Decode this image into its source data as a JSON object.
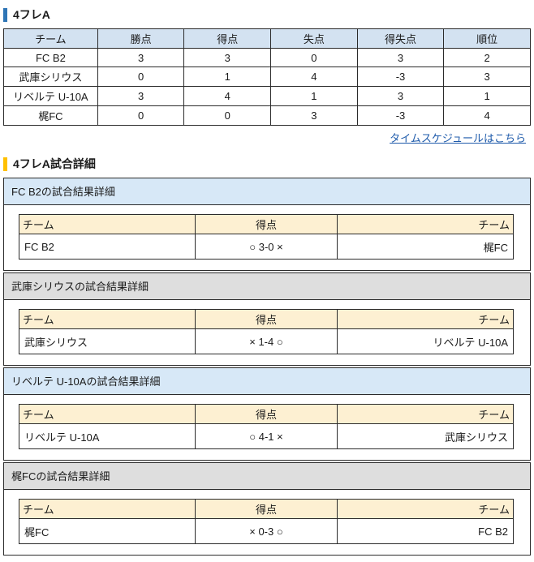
{
  "page": {
    "standings_title": "4フレA",
    "details_title": "4フレA試合詳細",
    "schedule_link_label": "タイムスケジュールはこちら"
  },
  "standings": {
    "headers": [
      "チーム",
      "勝点",
      "得点",
      "失点",
      "得失点",
      "順位"
    ],
    "rows": [
      {
        "team": "FC B2",
        "win_points": "3",
        "goals_for": "3",
        "goals_against": "0",
        "goal_diff": "3",
        "rank": "2"
      },
      {
        "team": "武庫シリウス",
        "win_points": "0",
        "goals_for": "1",
        "goals_against": "4",
        "goal_diff": "-3",
        "rank": "3"
      },
      {
        "team": "リベルテ U-10A",
        "win_points": "3",
        "goals_for": "4",
        "goals_against": "1",
        "goal_diff": "3",
        "rank": "1"
      },
      {
        "team": "梶FC",
        "win_points": "0",
        "goals_for": "0",
        "goals_against": "3",
        "goal_diff": "-3",
        "rank": "4"
      }
    ]
  },
  "match_details": {
    "inner_headers": [
      "チーム",
      "得点",
      "チーム"
    ],
    "sections": [
      {
        "title": "FC B2の試合結果詳細",
        "highlight": "blue",
        "home_team": "FC B2",
        "score": "○ 3-0 ×",
        "away_team": "梶FC"
      },
      {
        "title": "武庫シリウスの試合結果詳細",
        "highlight": "gray",
        "home_team": "武庫シリウス",
        "score": "× 1-4 ○",
        "away_team": "リベルテ U-10A"
      },
      {
        "title": "リベルテ U-10Aの試合結果詳細",
        "highlight": "blue",
        "home_team": "リベルテ U-10A",
        "score": "○ 4-1 ×",
        "away_team": "武庫シリウス"
      },
      {
        "title": "梶FCの試合結果詳細",
        "highlight": "gray",
        "home_team": "梶FC",
        "score": "× 0-3 ○",
        "away_team": "FC B2"
      }
    ]
  },
  "colors": {
    "accent_blue": "#2e75b6",
    "accent_yellow": "#ffc000",
    "standings_header_bg": "#d3e2f1",
    "section_header_blue_bg": "#d7e8f7",
    "section_header_gray_bg": "#dedede",
    "inner_header_bg": "#fdf0d2",
    "link_color": "#1f5bab",
    "border_color": "#2b2b2b"
  }
}
